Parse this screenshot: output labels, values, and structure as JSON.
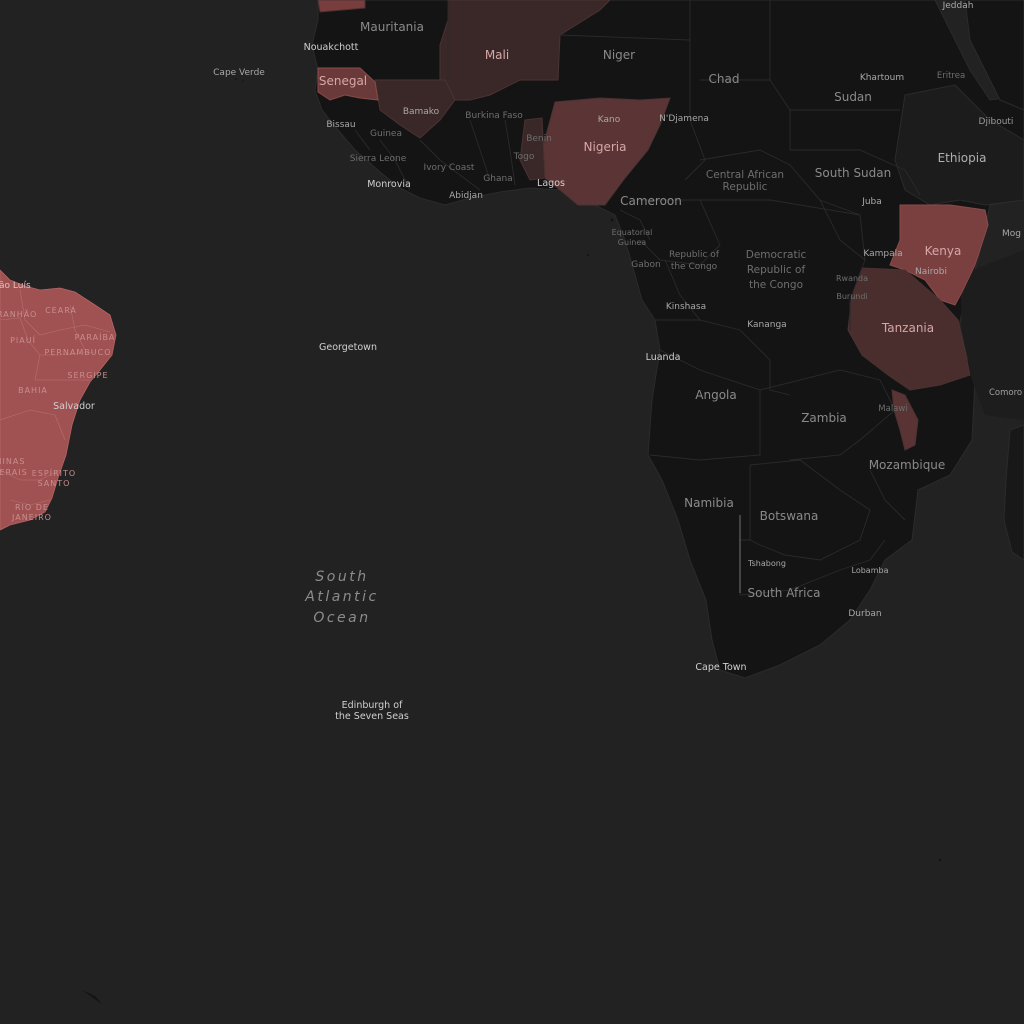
{
  "map": {
    "ocean": {
      "south_atlantic": [
        "South",
        "Atlantic",
        "Ocean"
      ]
    },
    "countries": {
      "mauritania": "Mauritania",
      "mali": "Mali",
      "niger": "Niger",
      "chad": "Chad",
      "sudan": "Sudan",
      "senegal": "Senegal",
      "nigeria": "Nigeria",
      "ethiopia": "Ethiopia",
      "south_sudan": "South Sudan",
      "car": [
        "Central African",
        "Republic"
      ],
      "cameroon": "Cameroon",
      "drc": [
        "Democratic",
        "Republic of",
        "the Congo"
      ],
      "kenya": "Kenya",
      "tanzania": "Tanzania",
      "angola": "Angola",
      "zambia": "Zambia",
      "mozambique": "Mozambique",
      "namibia": "Namibia",
      "botswana": "Botswana",
      "south_africa": "South Africa",
      "burkina_faso": "Burkina Faso",
      "guinea": "Guinea",
      "sierra_leone": "Sierra Leone",
      "ivory_coast": "Ivory Coast",
      "ghana": "Ghana",
      "togo": "Togo",
      "benin": "Benin",
      "eq_guinea": [
        "Equatorial",
        "Guinea"
      ],
      "gabon": "Gabon",
      "rep_congo": [
        "Republic of",
        "the Congo"
      ],
      "rwanda": "Rwanda",
      "burundi": "Burundi",
      "malawi": "Malawi",
      "eritrea": "Eritrea",
      "djibouti": "Djibouti",
      "comoros": "Comoro"
    },
    "cities": {
      "nouakchott": "Nouakchott",
      "cape_verde": "Cape Verde",
      "bamako": "Bamako",
      "khartoum": "Khartoum",
      "jeddah": "Jeddah",
      "kano": "Kano",
      "ndjamena": "N'Djamena",
      "bissau": "Bissau",
      "monrovia": "Monrovia",
      "abidjan": "Abidjan",
      "lagos": "Lagos",
      "juba": "Juba",
      "mog": "Mog",
      "kampala": "Kampala",
      "nairobi": "Nairobi",
      "kinshasa": "Kinshasa",
      "kananga": "Kananga",
      "luanda": "Luanda",
      "georgetown": "Georgetown",
      "salvador": "Salvador",
      "sao_luis": "São Luís",
      "tshabong": "Tshabong",
      "maputo_area": "Lobamba",
      "durban": "Durban",
      "cape_town": "Cape Town",
      "edinburgh": [
        "Edinburgh of",
        "the Seven Seas"
      ]
    },
    "brazil_states": {
      "maranhao": "MARANHÃO",
      "ceara": "CEARÁ",
      "piaui": "PIAUÍ",
      "paraiba": "PARAÍBA",
      "pernambuco": "PERNAMBUCO",
      "sergipe": "SERGIPE",
      "bahia": "BAHIA",
      "minas": [
        "MINAS",
        "GERAIS"
      ],
      "espirito": [
        "ESPÍRITO",
        "SANTO"
      ],
      "rio": [
        "RIO DE",
        "JANEIRO"
      ]
    },
    "colors": {
      "ocean": "#222222",
      "land": "#141414",
      "highlight_low": "#3a2828",
      "highlight_mid": "#6e3a3a",
      "highlight_high": "#a05252"
    }
  }
}
